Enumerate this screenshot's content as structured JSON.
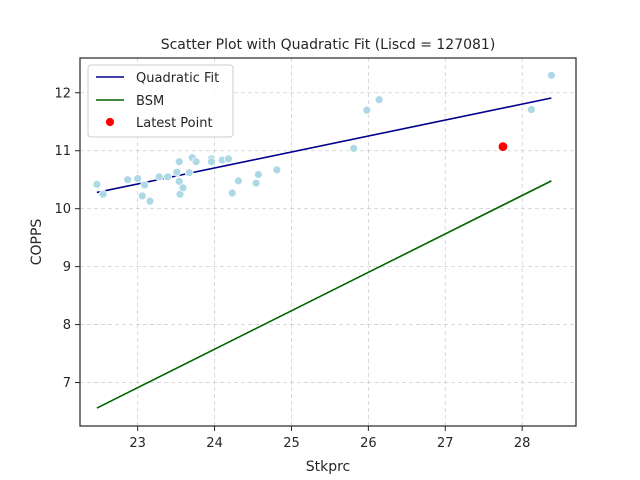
{
  "chart_data": {
    "type": "scatter",
    "title": "Scatter Plot with Quadratic Fit (Liscd = 127081)",
    "xlabel": "Stkprc",
    "ylabel": "COPPS",
    "xlim": [
      22.25,
      28.7
    ],
    "ylim": [
      6.25,
      12.6
    ],
    "xticks": [
      23,
      24,
      25,
      26,
      27,
      28
    ],
    "yticks": [
      7,
      8,
      9,
      10,
      11,
      12
    ],
    "grid": true,
    "legend_position": "top-left",
    "legend": [
      {
        "label": "Quadratic Fit",
        "color": "#00008b",
        "kind": "line"
      },
      {
        "label": "BSM",
        "color": "#006400",
        "kind": "line"
      },
      {
        "label": "Latest Point",
        "color": "#ff0000",
        "kind": "marker"
      }
    ],
    "scatter_series": {
      "name": "",
      "color": "#add8e6",
      "points": [
        [
          22.47,
          10.42
        ],
        [
          22.55,
          10.25
        ],
        [
          22.87,
          10.5
        ],
        [
          23.0,
          10.52
        ],
        [
          23.06,
          10.22
        ],
        [
          23.09,
          10.41
        ],
        [
          23.16,
          10.13
        ],
        [
          23.28,
          10.55
        ],
        [
          23.39,
          10.55
        ],
        [
          23.51,
          10.63
        ],
        [
          23.54,
          10.81
        ],
        [
          23.54,
          10.47
        ],
        [
          23.55,
          10.25
        ],
        [
          23.59,
          10.36
        ],
        [
          23.67,
          10.62
        ],
        [
          23.71,
          10.88
        ],
        [
          23.76,
          10.81
        ],
        [
          23.96,
          10.86
        ],
        [
          23.96,
          10.81
        ],
        [
          24.1,
          10.84
        ],
        [
          24.18,
          10.86
        ],
        [
          24.23,
          10.27
        ],
        [
          24.31,
          10.48
        ],
        [
          24.54,
          10.44
        ],
        [
          24.57,
          10.59
        ],
        [
          24.81,
          10.67
        ],
        [
          25.81,
          11.04
        ],
        [
          25.98,
          11.7
        ],
        [
          26.14,
          11.88
        ],
        [
          28.12,
          11.71
        ],
        [
          28.38,
          12.3
        ]
      ]
    },
    "latest_point": {
      "name": "Latest Point",
      "x": 27.75,
      "y": 11.07,
      "color": "#ff0000"
    },
    "line_series": [
      {
        "name": "Quadratic Fit",
        "color": "#00008b",
        "points": [
          [
            22.47,
            10.28
          ],
          [
            28.38,
            11.91
          ]
        ]
      },
      {
        "name": "BSM",
        "color": "#006400",
        "points": [
          [
            22.47,
            6.56
          ],
          [
            28.38,
            10.48
          ]
        ]
      }
    ]
  }
}
